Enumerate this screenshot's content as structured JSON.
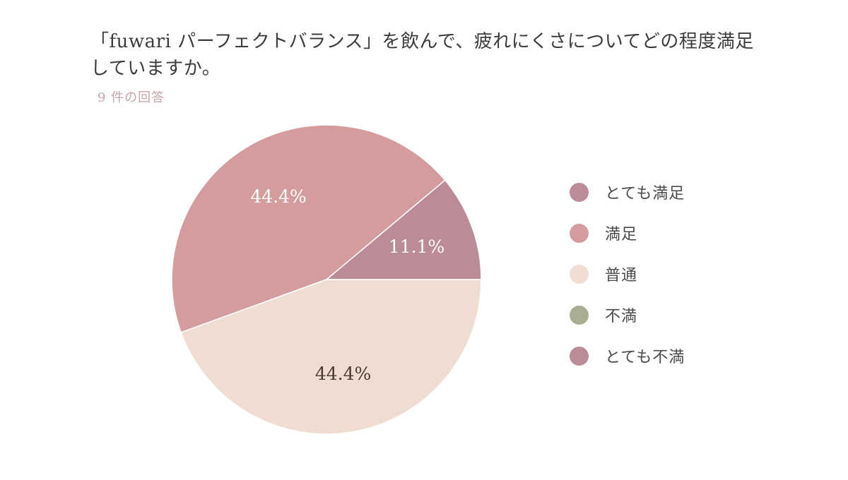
{
  "question": {
    "title": "「fuwari パーフェクトバランス」を飲んで、疲れにくさについてどの程度満足していますか。",
    "response_count": "9 件の回答"
  },
  "chart_data": {
    "type": "pie",
    "title": "「fuwari パーフェクトバランス」を飲んで、疲れにくさについてどの程度満足していますか。",
    "subtitle": "9 件の回答",
    "categories": [
      "とても満足",
      "満足",
      "普通",
      "不満",
      "とても不満"
    ],
    "values": [
      11.1,
      44.4,
      44.4,
      0,
      0
    ],
    "labels": [
      "11.1%",
      "44.4%",
      "44.4%",
      "",
      ""
    ],
    "colors": [
      "#bb8b97",
      "#d49c9d",
      "#efddd2",
      "#a9ad92",
      "#bb8b97"
    ],
    "label_colors": [
      "#ffffff",
      "#ffffff",
      "#4a3b32",
      "#ffffff",
      "#ffffff"
    ],
    "legend_position": "right",
    "start": "3 o'clock, counter-clockwise"
  }
}
